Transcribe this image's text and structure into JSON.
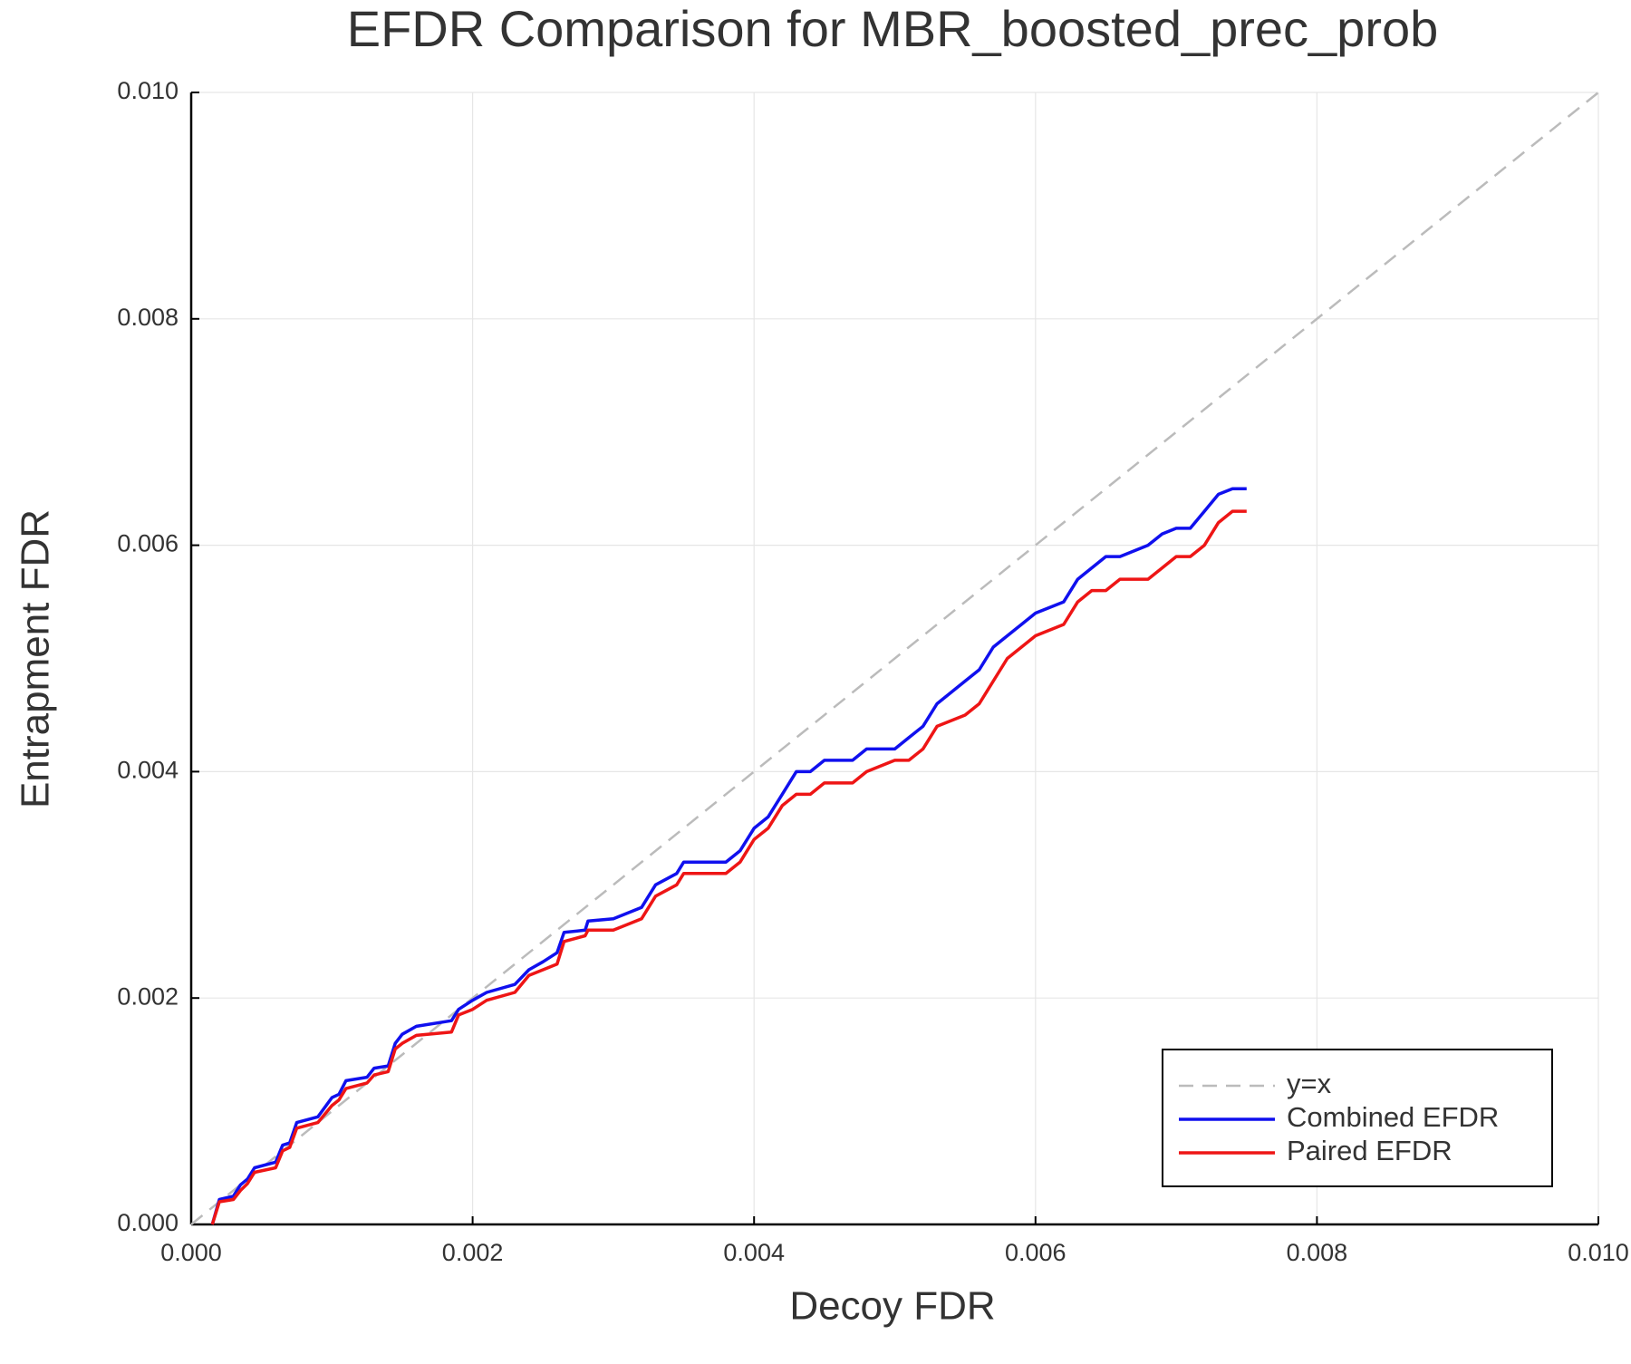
{
  "chart_data": {
    "type": "line",
    "title": "EFDR Comparison for MBR_boosted_prec_prob",
    "x_label": "Decoy FDR",
    "y_label": "Entrapment FDR",
    "xlim": [
      0,
      0.01
    ],
    "ylim": [
      0,
      0.01
    ],
    "xticks": [
      {
        "value": 0,
        "label": "0.000"
      },
      {
        "value": 0.002,
        "label": "0.002"
      },
      {
        "value": 0.004,
        "label": "0.004"
      },
      {
        "value": 0.006,
        "label": "0.006"
      },
      {
        "value": 0.008,
        "label": "0.008"
      },
      {
        "value": 0.01,
        "label": "0.010"
      }
    ],
    "yticks": [
      {
        "value": 0,
        "label": "0.000"
      },
      {
        "value": 0.002,
        "label": "0.002"
      },
      {
        "value": 0.004,
        "label": "0.004"
      },
      {
        "value": 0.006,
        "label": "0.006"
      },
      {
        "value": 0.008,
        "label": "0.008"
      },
      {
        "value": 0.01,
        "label": "0.010"
      }
    ],
    "grid": true,
    "legend": "bottom-right",
    "series": [
      {
        "name": "y=x",
        "color": "#bbbbbb",
        "dashed": true,
        "x": [
          0,
          0.01
        ],
        "values": [
          0,
          0.01
        ]
      },
      {
        "name": "Combined EFDR",
        "color": "#1010ee",
        "x": [
          0.00015,
          0.0002,
          0.0003,
          0.00035,
          0.0004,
          0.00045,
          0.0006,
          0.00065,
          0.0007,
          0.00075,
          0.0009,
          0.001,
          0.00105,
          0.0011,
          0.00125,
          0.0013,
          0.0014,
          0.00145,
          0.0015,
          0.0016,
          0.00185,
          0.0019,
          0.002,
          0.0021,
          0.0023,
          0.0024,
          0.0025,
          0.0026,
          0.00265,
          0.0028,
          0.00282,
          0.003,
          0.0032,
          0.0033,
          0.00345,
          0.0035,
          0.0038,
          0.0039,
          0.004,
          0.0041,
          0.0042,
          0.0043,
          0.0044,
          0.0045,
          0.0047,
          0.0048,
          0.005,
          0.0051,
          0.0052,
          0.0053,
          0.0055,
          0.0056,
          0.0057,
          0.0058,
          0.0059,
          0.006,
          0.0062,
          0.0063,
          0.0064,
          0.0065,
          0.0066,
          0.0068,
          0.0069,
          0.007,
          0.0071,
          0.0072,
          0.0073,
          0.0074,
          0.0075
        ],
        "values": [
          0,
          0.00022,
          0.00025,
          0.00035,
          0.0004,
          0.0005,
          0.00055,
          0.0007,
          0.00072,
          0.0009,
          0.00095,
          0.00112,
          0.00115,
          0.00127,
          0.0013,
          0.00138,
          0.0014,
          0.0016,
          0.00168,
          0.00175,
          0.0018,
          0.0019,
          0.00198,
          0.00205,
          0.00212,
          0.00225,
          0.00232,
          0.0024,
          0.00258,
          0.0026,
          0.00268,
          0.0027,
          0.0028,
          0.003,
          0.0031,
          0.0032,
          0.0032,
          0.0033,
          0.0035,
          0.0036,
          0.0038,
          0.004,
          0.004,
          0.0041,
          0.0041,
          0.0042,
          0.0042,
          0.0043,
          0.0044,
          0.0046,
          0.0048,
          0.0049,
          0.0051,
          0.0052,
          0.0053,
          0.0054,
          0.0055,
          0.0057,
          0.0058,
          0.0059,
          0.0059,
          0.006,
          0.0061,
          0.00615,
          0.00615,
          0.0063,
          0.00645,
          0.0065,
          0.0065
        ]
      },
      {
        "name": "Paired EFDR",
        "color": "#ee1515",
        "x": [
          0.00015,
          0.0002,
          0.0003,
          0.00035,
          0.0004,
          0.00045,
          0.0006,
          0.00065,
          0.0007,
          0.00075,
          0.0009,
          0.001,
          0.00105,
          0.0011,
          0.00125,
          0.0013,
          0.0014,
          0.00145,
          0.0015,
          0.0016,
          0.00185,
          0.0019,
          0.002,
          0.0021,
          0.0023,
          0.0024,
          0.0025,
          0.0026,
          0.00265,
          0.0028,
          0.00282,
          0.003,
          0.0032,
          0.0033,
          0.00345,
          0.0035,
          0.0038,
          0.0039,
          0.004,
          0.0041,
          0.0042,
          0.0043,
          0.0044,
          0.0045,
          0.0047,
          0.0048,
          0.005,
          0.0051,
          0.0052,
          0.0053,
          0.0055,
          0.0056,
          0.0057,
          0.0058,
          0.0059,
          0.006,
          0.0062,
          0.0063,
          0.0064,
          0.0065,
          0.0066,
          0.0068,
          0.0069,
          0.007,
          0.0071,
          0.0072,
          0.0073,
          0.0074,
          0.0075
        ],
        "values": [
          0,
          0.0002,
          0.00022,
          0.0003,
          0.00036,
          0.00046,
          0.0005,
          0.00065,
          0.00068,
          0.00085,
          0.0009,
          0.00105,
          0.0011,
          0.0012,
          0.00125,
          0.00132,
          0.00135,
          0.00155,
          0.0016,
          0.00167,
          0.0017,
          0.00185,
          0.0019,
          0.00198,
          0.00205,
          0.0022,
          0.00225,
          0.0023,
          0.0025,
          0.00255,
          0.0026,
          0.0026,
          0.0027,
          0.0029,
          0.003,
          0.0031,
          0.0031,
          0.0032,
          0.0034,
          0.0035,
          0.0037,
          0.0038,
          0.0038,
          0.0039,
          0.0039,
          0.004,
          0.0041,
          0.0041,
          0.0042,
          0.0044,
          0.0045,
          0.0046,
          0.0048,
          0.005,
          0.0051,
          0.0052,
          0.0053,
          0.0055,
          0.0056,
          0.0056,
          0.0057,
          0.0057,
          0.0058,
          0.0059,
          0.0059,
          0.006,
          0.0062,
          0.0063,
          0.0063
        ]
      }
    ]
  }
}
